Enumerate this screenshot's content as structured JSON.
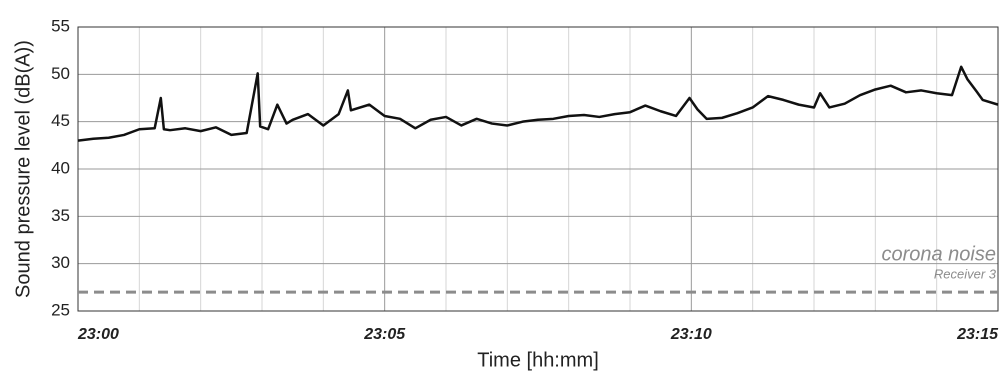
{
  "chart_data": {
    "type": "line",
    "xlabel": "Time [hh:mm]",
    "ylabel": "Sound pressure level (dB(A))",
    "x": [
      0,
      0.25,
      0.5,
      0.75,
      1.0,
      1.25,
      1.35,
      1.4,
      1.5,
      1.75,
      2.0,
      2.25,
      2.5,
      2.75,
      2.93,
      2.97,
      3.1,
      3.25,
      3.4,
      3.5,
      3.75,
      4.0,
      4.25,
      4.4,
      4.45,
      4.75,
      5.0,
      5.25,
      5.5,
      5.75,
      6.0,
      6.25,
      6.5,
      6.75,
      7.0,
      7.25,
      7.5,
      7.75,
      8.0,
      8.25,
      8.5,
      8.75,
      9.0,
      9.25,
      9.5,
      9.75,
      9.97,
      10.1,
      10.25,
      10.5,
      10.75,
      11.0,
      11.25,
      11.5,
      11.75,
      12.0,
      12.1,
      12.25,
      12.5,
      12.75,
      13.0,
      13.25,
      13.5,
      13.75,
      14.0,
      14.25,
      14.4,
      14.5,
      14.65,
      14.75,
      15.0
    ],
    "series": [
      {
        "color": "#111111",
        "values": [
          43,
          43.2,
          43.3,
          43.6,
          44.2,
          44.3,
          47.5,
          44.2,
          44.1,
          44.3,
          44,
          44.4,
          43.6,
          43.8,
          50.1,
          44.5,
          44.2,
          46.8,
          44.8,
          45.2,
          45.8,
          44.6,
          45.8,
          48.3,
          46.2,
          46.8,
          45.6,
          45.3,
          44.3,
          45.2,
          45.5,
          44.6,
          45.3,
          44.8,
          44.6,
          45.0,
          45.2,
          45.3,
          45.6,
          45.7,
          45.5,
          45.8,
          46.0,
          46.7,
          46.1,
          45.6,
          47.5,
          46.3,
          45.3,
          45.4,
          45.9,
          46.5,
          47.7,
          47.3,
          46.8,
          46.5,
          48.0,
          46.5,
          46.9,
          47.8,
          48.4,
          48.8,
          48.1,
          48.3,
          48.0,
          47.8,
          50.8,
          49.5,
          48.2,
          47.3,
          46.8
        ]
      }
    ],
    "reference_line": {
      "value": 27,
      "label": "corona noise",
      "sublabel": "Receiver 3",
      "color": "#8c8c8c"
    },
    "xlim": [
      0,
      15
    ],
    "xticks": [
      {
        "value": 0,
        "label": "23:00"
      },
      {
        "value": 5,
        "label": "23:05"
      },
      {
        "value": 10,
        "label": "23:10"
      },
      {
        "value": 15,
        "label": "23:15"
      }
    ],
    "xminorticks": [
      1,
      2,
      3,
      4,
      6,
      7,
      8,
      9,
      11,
      12,
      13,
      14
    ],
    "ylim": [
      25,
      55
    ],
    "yticks": [
      25,
      30,
      35,
      40,
      45,
      50,
      55
    ],
    "grid": true
  }
}
